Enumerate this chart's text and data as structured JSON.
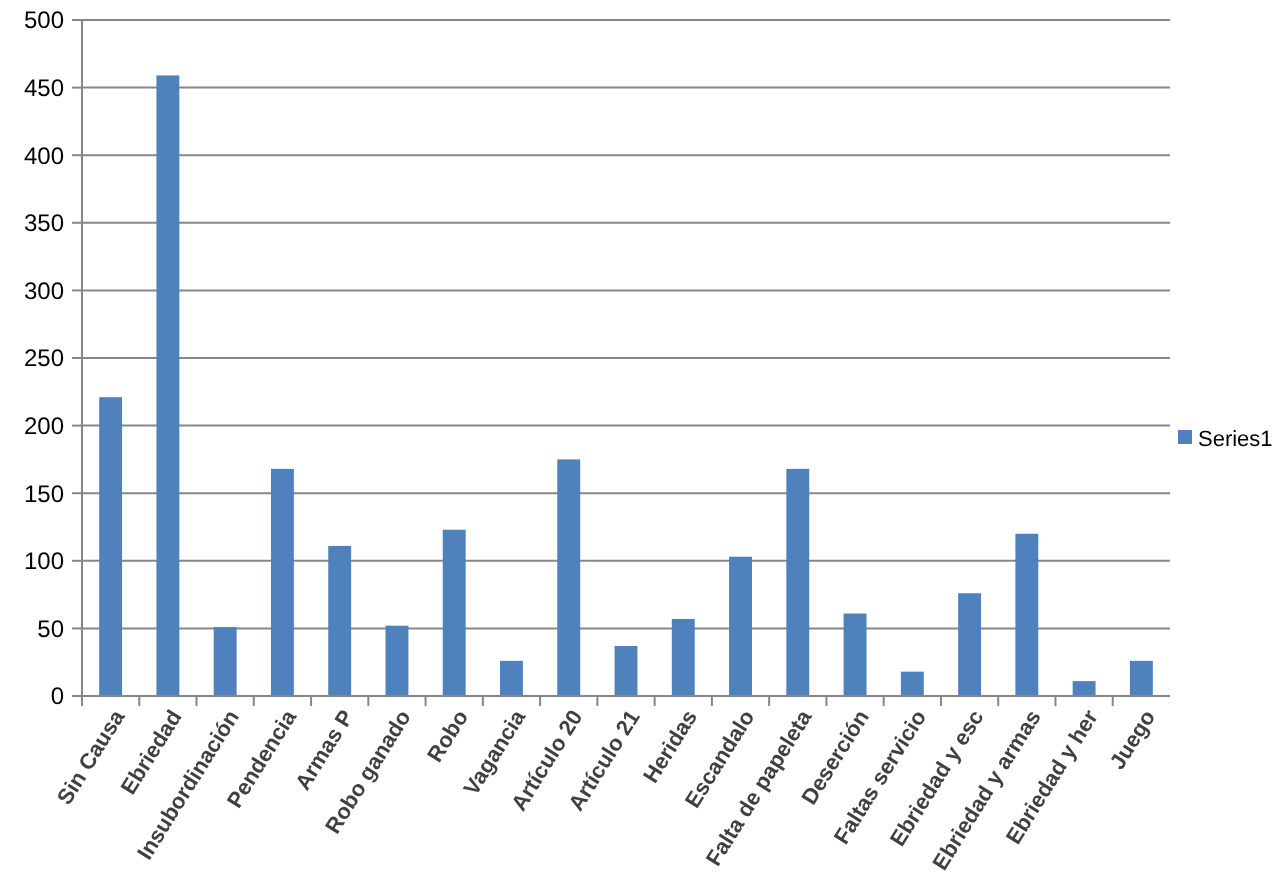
{
  "chart_data": {
    "type": "bar",
    "categories": [
      "Sin Causa",
      "Ebriedad",
      "Insubordinación",
      "Pendencia",
      "Armas P",
      "Robo ganado",
      "Robo",
      "Vagancia",
      "Artículo 20",
      "Artículo 21",
      "Heridas",
      "Escandalo",
      "Falta de papeleta",
      "Deserción",
      "Faltas servicio",
      "Ebriedad y esc",
      "Ebriedad y armas",
      "Ebriedad y her",
      "Juego"
    ],
    "series": [
      {
        "name": "Series1",
        "color": "#4f81bd",
        "values": [
          221,
          459,
          51,
          168,
          111,
          52,
          123,
          26,
          175,
          37,
          57,
          103,
          168,
          61,
          18,
          76,
          120,
          11,
          26
        ]
      }
    ],
    "ylim": [
      0,
      500
    ],
    "yticks": [
      0,
      50,
      100,
      150,
      200,
      250,
      300,
      350,
      400,
      450,
      500
    ],
    "grid": "y",
    "legend": "right"
  }
}
